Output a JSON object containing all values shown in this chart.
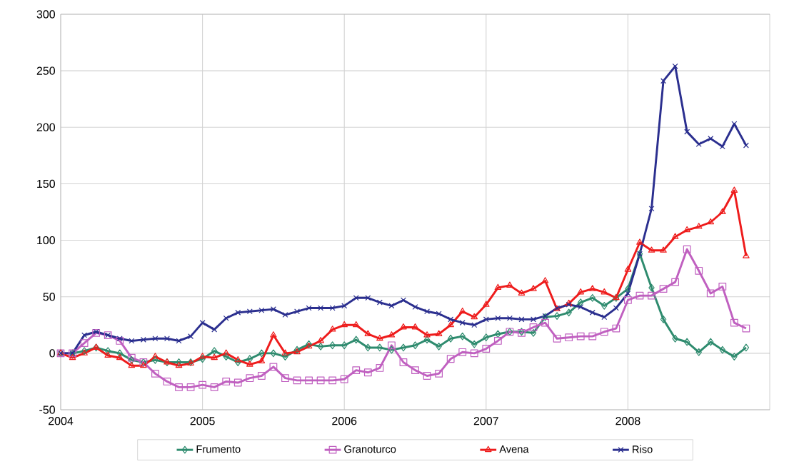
{
  "chart_data": {
    "type": "line",
    "x": [
      "2004-01",
      "2004-02",
      "2004-03",
      "2004-04",
      "2004-05",
      "2004-06",
      "2004-07",
      "2004-08",
      "2004-09",
      "2004-10",
      "2004-11",
      "2004-12",
      "2005-01",
      "2005-02",
      "2005-03",
      "2005-04",
      "2005-05",
      "2005-06",
      "2005-07",
      "2005-08",
      "2005-09",
      "2005-10",
      "2005-11",
      "2005-12",
      "2006-01",
      "2006-02",
      "2006-03",
      "2006-04",
      "2006-05",
      "2006-06",
      "2006-07",
      "2006-08",
      "2006-09",
      "2006-10",
      "2006-11",
      "2006-12",
      "2007-01",
      "2007-02",
      "2007-03",
      "2007-04",
      "2007-05",
      "2007-06",
      "2007-07",
      "2007-08",
      "2007-09",
      "2007-10",
      "2007-11",
      "2007-12",
      "2008-01",
      "2008-02",
      "2008-03",
      "2008-04",
      "2008-05",
      "2008-06",
      "2008-07",
      "2008-08",
      "2008-09",
      "2008-10",
      "2008-11"
    ],
    "series": [
      {
        "name": "Frumento",
        "color": "#2e8b6e",
        "marker": "diamond",
        "values": [
          0,
          0,
          2,
          5,
          2,
          0,
          -6,
          -8,
          -6,
          -8,
          -8,
          -8,
          -5,
          2,
          -3,
          -8,
          -5,
          0,
          0,
          -3,
          3,
          8,
          6,
          7,
          7,
          12,
          5,
          5,
          3,
          5,
          7,
          12,
          6,
          13,
          15,
          8,
          14,
          17,
          19,
          19,
          18,
          32,
          33,
          36,
          45,
          49,
          42,
          49,
          57,
          88,
          58,
          30,
          13,
          10,
          1,
          10,
          3,
          -3,
          5
        ]
      },
      {
        "name": "Granoturco",
        "color": "#c060c0",
        "marker": "square",
        "values": [
          0,
          0,
          9,
          18,
          16,
          11,
          -4,
          -8,
          -18,
          -25,
          -30,
          -30,
          -28,
          -30,
          -25,
          -26,
          -22,
          -20,
          -12,
          -22,
          -24,
          -24,
          -24,
          -24,
          -23,
          -15,
          -17,
          -13,
          7,
          -8,
          -15,
          -20,
          -18,
          -5,
          1,
          0,
          4,
          11,
          19,
          18,
          23,
          27,
          13,
          14,
          15,
          15,
          19,
          22,
          47,
          51,
          51,
          57,
          63,
          92,
          73,
          53,
          59,
          27,
          22
        ]
      },
      {
        "name": "Avena",
        "color": "#ee1c1c",
        "marker": "triangle",
        "values": [
          0,
          -4,
          0,
          5,
          -2,
          -4,
          -11,
          -11,
          -3,
          -8,
          -11,
          -9,
          -3,
          -4,
          0,
          -6,
          -10,
          -7,
          16,
          0,
          1,
          6,
          11,
          21,
          25,
          25,
          17,
          13,
          16,
          23,
          23,
          16,
          17,
          25,
          37,
          32,
          43,
          58,
          60,
          53,
          57,
          64,
          39,
          44,
          54,
          57,
          54,
          49,
          74,
          98,
          91,
          91,
          103,
          109,
          112,
          116,
          125,
          144,
          86
        ]
      },
      {
        "name": "Riso",
        "color": "#2b2f8f",
        "marker": "cross",
        "values": [
          0,
          0,
          16,
          19,
          16,
          13,
          11,
          12,
          13,
          13,
          11,
          15,
          27,
          21,
          31,
          36,
          37,
          38,
          39,
          34,
          37,
          40,
          40,
          40,
          42,
          49,
          49,
          45,
          42,
          47,
          41,
          37,
          35,
          30,
          27,
          25,
          30,
          31,
          31,
          30,
          30,
          33,
          40,
          43,
          41,
          36,
          32,
          40,
          53,
          88,
          128,
          241,
          254,
          196,
          185,
          190,
          183,
          203,
          184
        ]
      }
    ],
    "xlim": [
      "2004-01",
      "2009-01"
    ],
    "xticks": [
      "2004",
      "2005",
      "2006",
      "2007",
      "2008"
    ],
    "ylim": [
      -50,
      300
    ],
    "yticks": [
      -50,
      0,
      50,
      100,
      150,
      200,
      250,
      300
    ],
    "grid": true,
    "legend": "bottom"
  }
}
